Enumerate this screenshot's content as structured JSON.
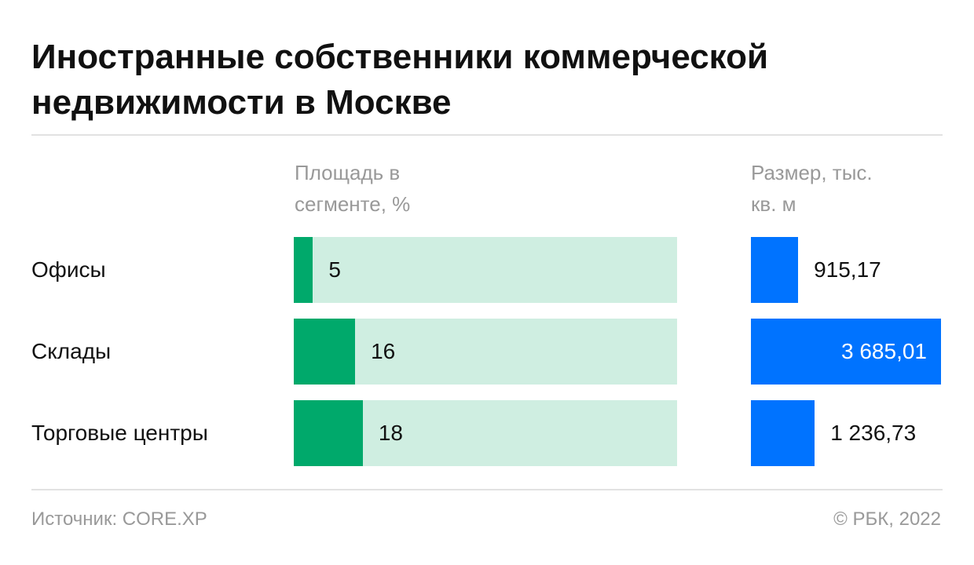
{
  "title": "Иностранные собственники коммерческой недвижимости в Москве",
  "source": "Источник: CORE.XP",
  "copyright": "© РБК, 2022",
  "chart_data": [
    {
      "type": "bar",
      "title": "Площадь в сегменте, %",
      "categories": [
        "Офисы",
        "Склады",
        "Торговые центры"
      ],
      "values": [
        5,
        16,
        18
      ],
      "color": "#00a96b",
      "track_color": "#cfeee1",
      "xlim": [
        0,
        100
      ]
    },
    {
      "type": "bar",
      "title": "Размер, тыс. кв. м",
      "values": [
        915.17,
        3685.01,
        1236.73
      ],
      "value_labels": [
        "915,17",
        "3 685,01",
        "1 236,73"
      ],
      "color": "#0073ff",
      "xlim": [
        0,
        3685.01
      ]
    }
  ]
}
